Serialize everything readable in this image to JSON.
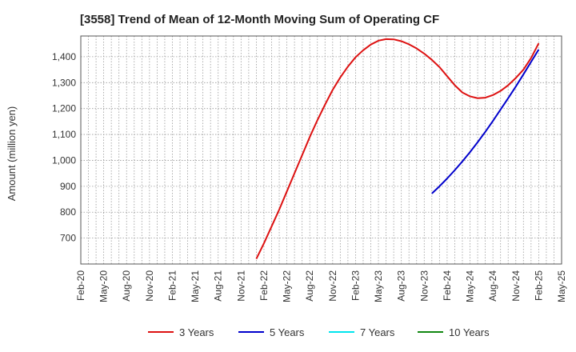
{
  "chart_data": {
    "type": "line",
    "title": "[3558]  Trend of Mean of 12-Month Moving Sum of Operating CF",
    "xlabel": "",
    "ylabel": "Amount (million yen)",
    "ylim": [
      600,
      1480
    ],
    "yticks": [
      700,
      800,
      900,
      1000,
      1100,
      1200,
      1300,
      1400
    ],
    "ytick_labels": [
      "700",
      "800",
      "900",
      "1,000",
      "1,100",
      "1,200",
      "1,300",
      "1,400"
    ],
    "x_tick_labels": [
      "Feb-20",
      "May-20",
      "Aug-20",
      "Nov-20",
      "Feb-21",
      "May-21",
      "Aug-21",
      "Nov-21",
      "Feb-22",
      "May-22",
      "Aug-22",
      "Nov-22",
      "Feb-23",
      "May-23",
      "Aug-23",
      "Nov-23",
      "Feb-24",
      "May-24",
      "Aug-24",
      "Nov-24",
      "Feb-25",
      "May-25"
    ],
    "grid": true,
    "legend_position": "bottom",
    "series": [
      {
        "name": "3 Years",
        "color": "#dd1111",
        "x": [
          "Jan-22",
          "Feb-22",
          "Mar-22",
          "Apr-22",
          "May-22",
          "Jun-22",
          "Jul-22",
          "Aug-22",
          "Sep-22",
          "Oct-22",
          "Nov-22",
          "Dec-22",
          "Jan-23",
          "Feb-23",
          "Mar-23",
          "Apr-23",
          "May-23",
          "Jun-23",
          "Jul-23",
          "Aug-23",
          "Sep-23",
          "Oct-23",
          "Nov-23",
          "Dec-23",
          "Jan-24",
          "Feb-24",
          "Mar-24",
          "Apr-24",
          "May-24",
          "Jun-24",
          "Jul-24",
          "Aug-24",
          "Sep-24",
          "Oct-24",
          "Nov-24",
          "Dec-24",
          "Jan-25",
          "Feb-25"
        ],
        "values": [
          620,
          680,
          745,
          810,
          880,
          950,
          1020,
          1090,
          1155,
          1215,
          1272,
          1320,
          1362,
          1398,
          1425,
          1447,
          1462,
          1468,
          1467,
          1460,
          1448,
          1432,
          1412,
          1388,
          1360,
          1325,
          1290,
          1262,
          1247,
          1240,
          1242,
          1252,
          1268,
          1290,
          1318,
          1350,
          1395,
          1452
        ]
      },
      {
        "name": "5 Years",
        "color": "#0000cc",
        "x": [
          "Dec-23",
          "Jan-24",
          "Feb-24",
          "Mar-24",
          "Apr-24",
          "May-24",
          "Jun-24",
          "Jul-24",
          "Aug-24",
          "Sep-24",
          "Oct-24",
          "Nov-24",
          "Dec-24",
          "Jan-25",
          "Feb-25"
        ],
        "values": [
          872,
          900,
          930,
          962,
          996,
          1032,
          1070,
          1110,
          1152,
          1196,
          1240,
          1285,
          1332,
          1380,
          1428
        ]
      },
      {
        "name": "7 Years",
        "color": "#00e5ee",
        "x": [],
        "values": []
      },
      {
        "name": "10 Years",
        "color": "#118811",
        "x": [],
        "values": []
      }
    ]
  }
}
